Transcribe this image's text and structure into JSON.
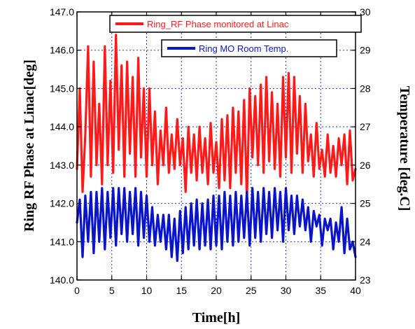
{
  "chart_data": {
    "type": "line",
    "xlabel": "Time[h]",
    "ylabel_left": "Ring RF Phase at Linac[deg]",
    "ylabel_right": "Temperature [deg.C]",
    "x_range": [
      0,
      40
    ],
    "y_left_range": [
      140.0,
      147.0
    ],
    "y_right_range": [
      23,
      30
    ],
    "x_ticks": [
      "0",
      "5",
      "10",
      "15",
      "20",
      "25",
      "30",
      "35",
      "40"
    ],
    "y_left_ticks": [
      "140.0",
      "141.0",
      "142.0",
      "143.0",
      "144.0",
      "145.0",
      "146.0",
      "147.0"
    ],
    "y_right_ticks": [
      "23",
      "24",
      "25",
      "26",
      "27",
      "28",
      "29",
      "30"
    ],
    "grid": true,
    "legend_placement": "top-right",
    "colors": {
      "phase": "#ff1a1a",
      "temp": "#0a14c8",
      "grid": "#2233cc",
      "axis": "#000000"
    },
    "series": [
      {
        "name": "Ring_RF Phase monitored at Linac",
        "axis": "left",
        "color": "#ff1a1a",
        "x": [
          0,
          0.4,
          0.8,
          1.2,
          1.6,
          2.0,
          2.4,
          2.8,
          3.2,
          3.6,
          4.0,
          4.4,
          4.8,
          5.2,
          5.6,
          6.0,
          6.4,
          6.8,
          7.2,
          7.6,
          8.0,
          8.4,
          8.8,
          9.2,
          9.6,
          10.0,
          10.4,
          10.8,
          11.2,
          11.6,
          12.0,
          12.4,
          12.8,
          13.2,
          13.6,
          14.0,
          14.4,
          14.8,
          15.2,
          15.6,
          16.0,
          16.4,
          16.8,
          17.2,
          17.6,
          18.0,
          18.4,
          18.8,
          19.2,
          19.6,
          20.0,
          20.4,
          20.8,
          21.2,
          21.6,
          22.0,
          22.4,
          22.8,
          23.2,
          23.6,
          24.0,
          24.4,
          24.8,
          25.2,
          25.6,
          26.0,
          26.4,
          26.8,
          27.2,
          27.6,
          28.0,
          28.4,
          28.8,
          29.2,
          29.6,
          30.0,
          30.4,
          30.8,
          31.2,
          31.6,
          32.0,
          32.4,
          32.8,
          33.2,
          33.6,
          34.0,
          34.4,
          34.8,
          35.2,
          35.6,
          36.0,
          36.4,
          36.8,
          37.2,
          37.6,
          38.0,
          38.4,
          38.8,
          39.2,
          39.6,
          40.0
        ],
        "y": [
          142.9,
          145.0,
          142.3,
          143.8,
          146.1,
          142.7,
          145.7,
          143.0,
          144.6,
          142.5,
          146.1,
          143.0,
          145.2,
          142.8,
          146.4,
          143.4,
          145.6,
          142.7,
          145.7,
          143.3,
          145.3,
          142.7,
          145.8,
          143.2,
          145.0,
          142.7,
          145.0,
          143.0,
          144.4,
          142.5,
          143.9,
          143.0,
          144.5,
          142.8,
          143.8,
          142.9,
          144.2,
          143.0,
          143.7,
          142.3,
          144.0,
          142.8,
          143.8,
          142.6,
          144.0,
          142.8,
          143.7,
          142.5,
          144.1,
          142.8,
          143.6,
          142.4,
          144.2,
          142.6,
          144.3,
          142.4,
          144.5,
          142.8,
          144.4,
          142.5,
          144.7,
          142.1,
          145.0,
          143.2,
          144.8,
          143.0,
          145.1,
          142.8,
          145.3,
          143.1,
          144.9,
          142.9,
          144.6,
          142.7,
          145.3,
          143.2,
          145.4,
          142.8,
          145.3,
          143.3,
          144.8,
          142.8,
          144.6,
          143.1,
          143.8,
          142.7,
          144.1,
          142.9,
          143.4,
          142.7,
          143.8,
          142.8,
          143.5,
          142.7,
          143.7,
          143.0,
          143.8,
          142.5,
          143.9,
          142.6,
          142.9
        ]
      },
      {
        "name": "Ring MO Room Temp.",
        "axis": "right",
        "color": "#0a14c8",
        "x": [
          0,
          0.4,
          0.8,
          1.2,
          1.6,
          2.0,
          2.4,
          2.8,
          3.2,
          3.6,
          4.0,
          4.4,
          4.8,
          5.2,
          5.6,
          6.0,
          6.4,
          6.8,
          7.2,
          7.6,
          8.0,
          8.4,
          8.8,
          9.2,
          9.6,
          10.0,
          10.4,
          10.8,
          11.2,
          11.6,
          12.0,
          12.4,
          12.8,
          13.2,
          13.6,
          14.0,
          14.4,
          14.8,
          15.2,
          15.6,
          16.0,
          16.4,
          16.8,
          17.2,
          17.6,
          18.0,
          18.4,
          18.8,
          19.2,
          19.6,
          20.0,
          20.4,
          20.8,
          21.2,
          21.6,
          22.0,
          22.4,
          22.8,
          23.2,
          23.6,
          24.0,
          24.4,
          24.8,
          25.2,
          25.6,
          26.0,
          26.4,
          26.8,
          27.2,
          27.6,
          28.0,
          28.4,
          28.8,
          29.2,
          29.6,
          30.0,
          30.4,
          30.8,
          31.2,
          31.6,
          32.0,
          32.4,
          32.8,
          33.2,
          33.6,
          34.0,
          34.4,
          34.8,
          35.2,
          35.6,
          36.0,
          36.4,
          36.8,
          37.2,
          37.6,
          38.0,
          38.4,
          38.8,
          39.2,
          39.6,
          40.0
        ],
        "y": [
          24.5,
          25.1,
          23.6,
          25.2,
          24.0,
          25.3,
          23.7,
          25.3,
          24.0,
          25.4,
          23.8,
          25.3,
          24.1,
          25.4,
          23.9,
          25.4,
          24.2,
          25.4,
          24.0,
          25.3,
          24.2,
          25.4,
          23.9,
          25.3,
          24.1,
          25.2,
          24.0,
          24.9,
          23.9,
          24.7,
          24.0,
          24.7,
          23.8,
          24.7,
          23.6,
          24.6,
          23.5,
          24.8,
          23.7,
          24.9,
          23.8,
          25.0,
          23.9,
          25.1,
          23.8,
          25.0,
          23.9,
          25.1,
          23.8,
          25.2,
          23.9,
          25.2,
          23.8,
          25.3,
          24.0,
          25.2,
          23.9,
          25.3,
          24.0,
          25.2,
          24.1,
          25.3,
          23.9,
          25.4,
          24.1,
          25.3,
          24.0,
          25.4,
          24.2,
          25.3,
          24.1,
          25.4,
          24.3,
          25.3,
          24.0,
          25.4,
          24.3,
          25.2,
          24.2,
          25.2,
          24.4,
          25.1,
          24.3,
          24.9,
          24.0,
          24.8,
          24.4,
          24.7,
          23.9,
          24.6,
          24.3,
          24.6,
          23.8,
          24.5,
          24.0,
          24.9,
          23.7,
          24.6,
          23.8,
          24.0,
          23.6
        ]
      }
    ]
  }
}
